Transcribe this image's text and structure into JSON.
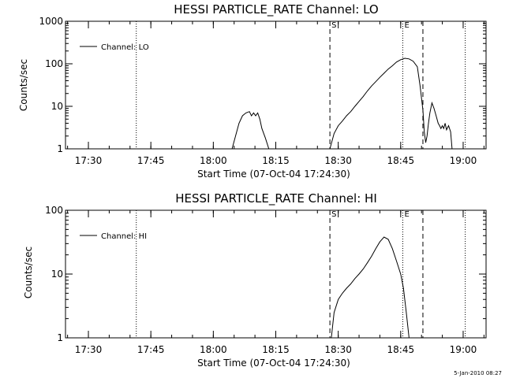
{
  "footer_timestamp": "5-Jan-2010 08:27",
  "chart_data": [
    {
      "type": "line",
      "title": "HESSI PARTICLE_RATE Channel: LO",
      "xlabel": "Start Time (07-Oct-04 17:24:30)",
      "ylabel": "Counts/sec",
      "xlim": [
        "17:24:30",
        "19:05:30"
      ],
      "x_ticks": [
        "17:30",
        "17:45",
        "18:00",
        "18:15",
        "18:30",
        "18:45",
        "19:00"
      ],
      "y_scale": "log",
      "ylim": [
        1,
        1000
      ],
      "y_ticks": [
        "1",
        "10",
        "100",
        "1000"
      ],
      "legend": {
        "position": "top-left",
        "entries": [
          "Channel: LO"
        ]
      },
      "grid": false,
      "vlines": [
        {
          "time": "17:41:30",
          "style": "dotted",
          "label": ""
        },
        {
          "time": "18:28:00",
          "style": "dashed",
          "label": "S"
        },
        {
          "time": "18:45:30",
          "style": "dotted",
          "label": "E"
        },
        {
          "time": "18:50:20",
          "style": "dashed",
          "label": ""
        },
        {
          "time": "19:00:30",
          "style": "dotted",
          "label": ""
        }
      ],
      "series": [
        {
          "name": "Channel: LO",
          "x": [
            "18:04:30",
            "18:05:20",
            "18:06:10",
            "18:07:00",
            "18:07:50",
            "18:08:40",
            "18:09:10",
            "18:09:40",
            "18:10:10",
            "18:10:40",
            "18:11:10",
            "18:11:40",
            "18:12:30",
            "18:13:20",
            "18:28:00",
            "18:29:00",
            "18:30:00",
            "18:31:00",
            "18:32:00",
            "18:33:00",
            "18:34:00",
            "18:35:00",
            "18:36:00",
            "18:37:00",
            "18:38:00",
            "18:39:00",
            "18:40:00",
            "18:41:00",
            "18:42:00",
            "18:43:00",
            "18:44:00",
            "18:45:00",
            "18:46:00",
            "18:47:00",
            "18:48:00",
            "18:49:00",
            "18:49:40",
            "18:50:20",
            "18:50:40",
            "18:51:00",
            "18:51:20",
            "18:51:40",
            "18:52:00",
            "18:52:30",
            "18:53:00",
            "18:53:30",
            "18:54:00",
            "18:54:20",
            "18:54:40",
            "18:55:00",
            "18:55:20",
            "18:55:40",
            "18:56:00",
            "18:56:30",
            "18:57:00",
            "18:57:20"
          ],
          "y": [
            1,
            2,
            4,
            6,
            7,
            7.5,
            6,
            7,
            6,
            7,
            5,
            3,
            1.8,
            1,
            1,
            2.3,
            3.5,
            4.5,
            6,
            7.5,
            10,
            13,
            17,
            23,
            30,
            38,
            48,
            60,
            75,
            90,
            110,
            125,
            135,
            130,
            115,
            85,
            30,
            8,
            2.5,
            1.4,
            2,
            4,
            7,
            12,
            9,
            6,
            4,
            3.5,
            3,
            3.5,
            3,
            4,
            2.8,
            3.5,
            2.5,
            1
          ]
        }
      ]
    },
    {
      "type": "line",
      "title": "HESSI PARTICLE_RATE Channel: HI",
      "xlabel": "Start Time (07-Oct-04 17:24:30)",
      "ylabel": "Counts/sec",
      "xlim": [
        "17:24:30",
        "19:05:30"
      ],
      "x_ticks": [
        "17:30",
        "17:45",
        "18:00",
        "18:15",
        "18:30",
        "18:45",
        "19:00"
      ],
      "y_scale": "log",
      "ylim": [
        1,
        100
      ],
      "y_ticks": [
        "1",
        "10",
        "100"
      ],
      "legend": {
        "position": "top-left",
        "entries": [
          "Channel: HI"
        ]
      },
      "grid": false,
      "vlines": [
        {
          "time": "17:41:30",
          "style": "dotted",
          "label": ""
        },
        {
          "time": "18:28:00",
          "style": "dashed",
          "label": "S"
        },
        {
          "time": "18:45:30",
          "style": "dotted",
          "label": "E"
        },
        {
          "time": "18:50:20",
          "style": "dashed",
          "label": ""
        },
        {
          "time": "19:00:30",
          "style": "dotted",
          "label": ""
        }
      ],
      "series": [
        {
          "name": "Channel: HI",
          "x": [
            "18:28:20",
            "18:29:00",
            "18:30:00",
            "18:31:00",
            "18:32:00",
            "18:33:00",
            "18:34:00",
            "18:35:00",
            "18:36:00",
            "18:37:00",
            "18:38:00",
            "18:39:00",
            "18:40:00",
            "18:41:00",
            "18:42:00",
            "18:43:00",
            "18:44:00",
            "18:45:00",
            "18:45:40",
            "18:46:20",
            "18:47:00"
          ],
          "y": [
            1,
            2.5,
            4,
            5,
            6,
            7,
            8.5,
            10,
            12,
            15,
            19,
            25,
            32,
            38,
            35,
            25,
            16,
            10,
            6,
            2.5,
            1
          ]
        }
      ]
    }
  ]
}
